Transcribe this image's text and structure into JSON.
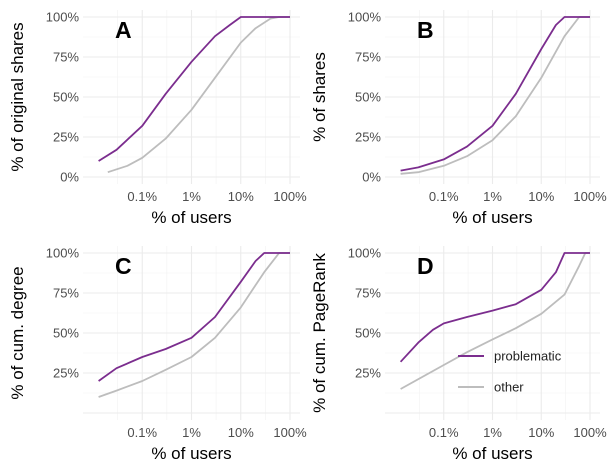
{
  "chart_data": [
    {
      "type": "line",
      "panel_label": "A",
      "xlabel": "% of users",
      "ylabel": "% of original shares",
      "x_scale": "log",
      "x_ticks": [
        "0.1%",
        "1%",
        "10%",
        "100%"
      ],
      "y_ticks": [
        "0%",
        "25%",
        "50%",
        "75%",
        "100%"
      ],
      "xlim": [
        0.01,
        100
      ],
      "ylim": [
        0,
        100
      ],
      "grid": true,
      "series": [
        {
          "name": "problematic",
          "color": "#7b2d8e",
          "x": [
            0.013,
            0.03,
            0.1,
            0.3,
            1,
            3,
            6,
            10,
            15,
            30,
            100
          ],
          "y": [
            10,
            17,
            32,
            52,
            72,
            88,
            95,
            100,
            100,
            100,
            100
          ]
        },
        {
          "name": "other",
          "color": "#bdbdbd",
          "x": [
            0.02,
            0.05,
            0.1,
            0.3,
            1,
            3,
            10,
            20,
            40,
            60,
            100
          ],
          "y": [
            3,
            7,
            12,
            24,
            42,
            62,
            84,
            93,
            99,
            100,
            100
          ]
        }
      ]
    },
    {
      "type": "line",
      "panel_label": "B",
      "xlabel": "% of users",
      "ylabel": "% of shares",
      "x_scale": "log",
      "x_ticks": [
        "0.1%",
        "1%",
        "10%",
        "100%"
      ],
      "y_ticks": [
        "0%",
        "25%",
        "50%",
        "75%",
        "100%"
      ],
      "xlim": [
        0.01,
        100
      ],
      "ylim": [
        0,
        100
      ],
      "grid": true,
      "series": [
        {
          "name": "problematic",
          "color": "#7b2d8e",
          "x": [
            0.013,
            0.03,
            0.1,
            0.3,
            1,
            3,
            10,
            20,
            30,
            100
          ],
          "y": [
            4,
            6,
            11,
            19,
            32,
            52,
            80,
            95,
            100,
            100
          ]
        },
        {
          "name": "other",
          "color": "#bdbdbd",
          "x": [
            0.013,
            0.03,
            0.1,
            0.3,
            1,
            3,
            10,
            30,
            60,
            100
          ],
          "y": [
            2,
            3,
            7,
            13,
            23,
            38,
            62,
            88,
            100,
            100
          ]
        }
      ]
    },
    {
      "type": "line",
      "panel_label": "C",
      "xlabel": "% of users",
      "ylabel": "% of cum. degree",
      "x_scale": "log",
      "x_ticks": [
        "0.1%",
        "1%",
        "10%",
        "100%"
      ],
      "y_ticks": [
        "25%",
        "50%",
        "75%",
        "100%"
      ],
      "xlim": [
        0.01,
        100
      ],
      "ylim": [
        0,
        100
      ],
      "grid": true,
      "series": [
        {
          "name": "problematic",
          "color": "#7b2d8e",
          "x": [
            0.013,
            0.03,
            0.1,
            0.3,
            1,
            3,
            10,
            20,
            30,
            100
          ],
          "y": [
            20,
            28,
            35,
            40,
            47,
            60,
            82,
            95,
            100,
            100
          ]
        },
        {
          "name": "other",
          "color": "#bdbdbd",
          "x": [
            0.013,
            0.03,
            0.1,
            0.3,
            1,
            3,
            10,
            30,
            60,
            100
          ],
          "y": [
            10,
            14,
            20,
            27,
            35,
            47,
            66,
            88,
            100,
            100
          ]
        }
      ]
    },
    {
      "type": "line",
      "panel_label": "D",
      "xlabel": "% of users",
      "ylabel": "% of cum. PageRank",
      "x_scale": "log",
      "x_ticks": [
        "0.1%",
        "1%",
        "10%",
        "100%"
      ],
      "y_ticks": [
        "25%",
        "50%",
        "75%",
        "100%"
      ],
      "xlim": [
        0.01,
        100
      ],
      "ylim": [
        0,
        100
      ],
      "grid": true,
      "legend": "inside-bottom-right",
      "series": [
        {
          "name": "problematic",
          "color": "#7b2d8e",
          "x": [
            0.013,
            0.03,
            0.06,
            0.1,
            0.3,
            1,
            3,
            10,
            20,
            30,
            100
          ],
          "y": [
            32,
            44,
            52,
            56,
            60,
            64,
            68,
            77,
            88,
            100,
            100
          ]
        },
        {
          "name": "other",
          "color": "#bdbdbd",
          "x": [
            0.013,
            0.1,
            0.3,
            1,
            3,
            10,
            30,
            60,
            80,
            100
          ],
          "y": [
            15,
            30,
            38,
            46,
            53,
            62,
            74,
            92,
            100,
            100
          ]
        }
      ]
    }
  ]
}
